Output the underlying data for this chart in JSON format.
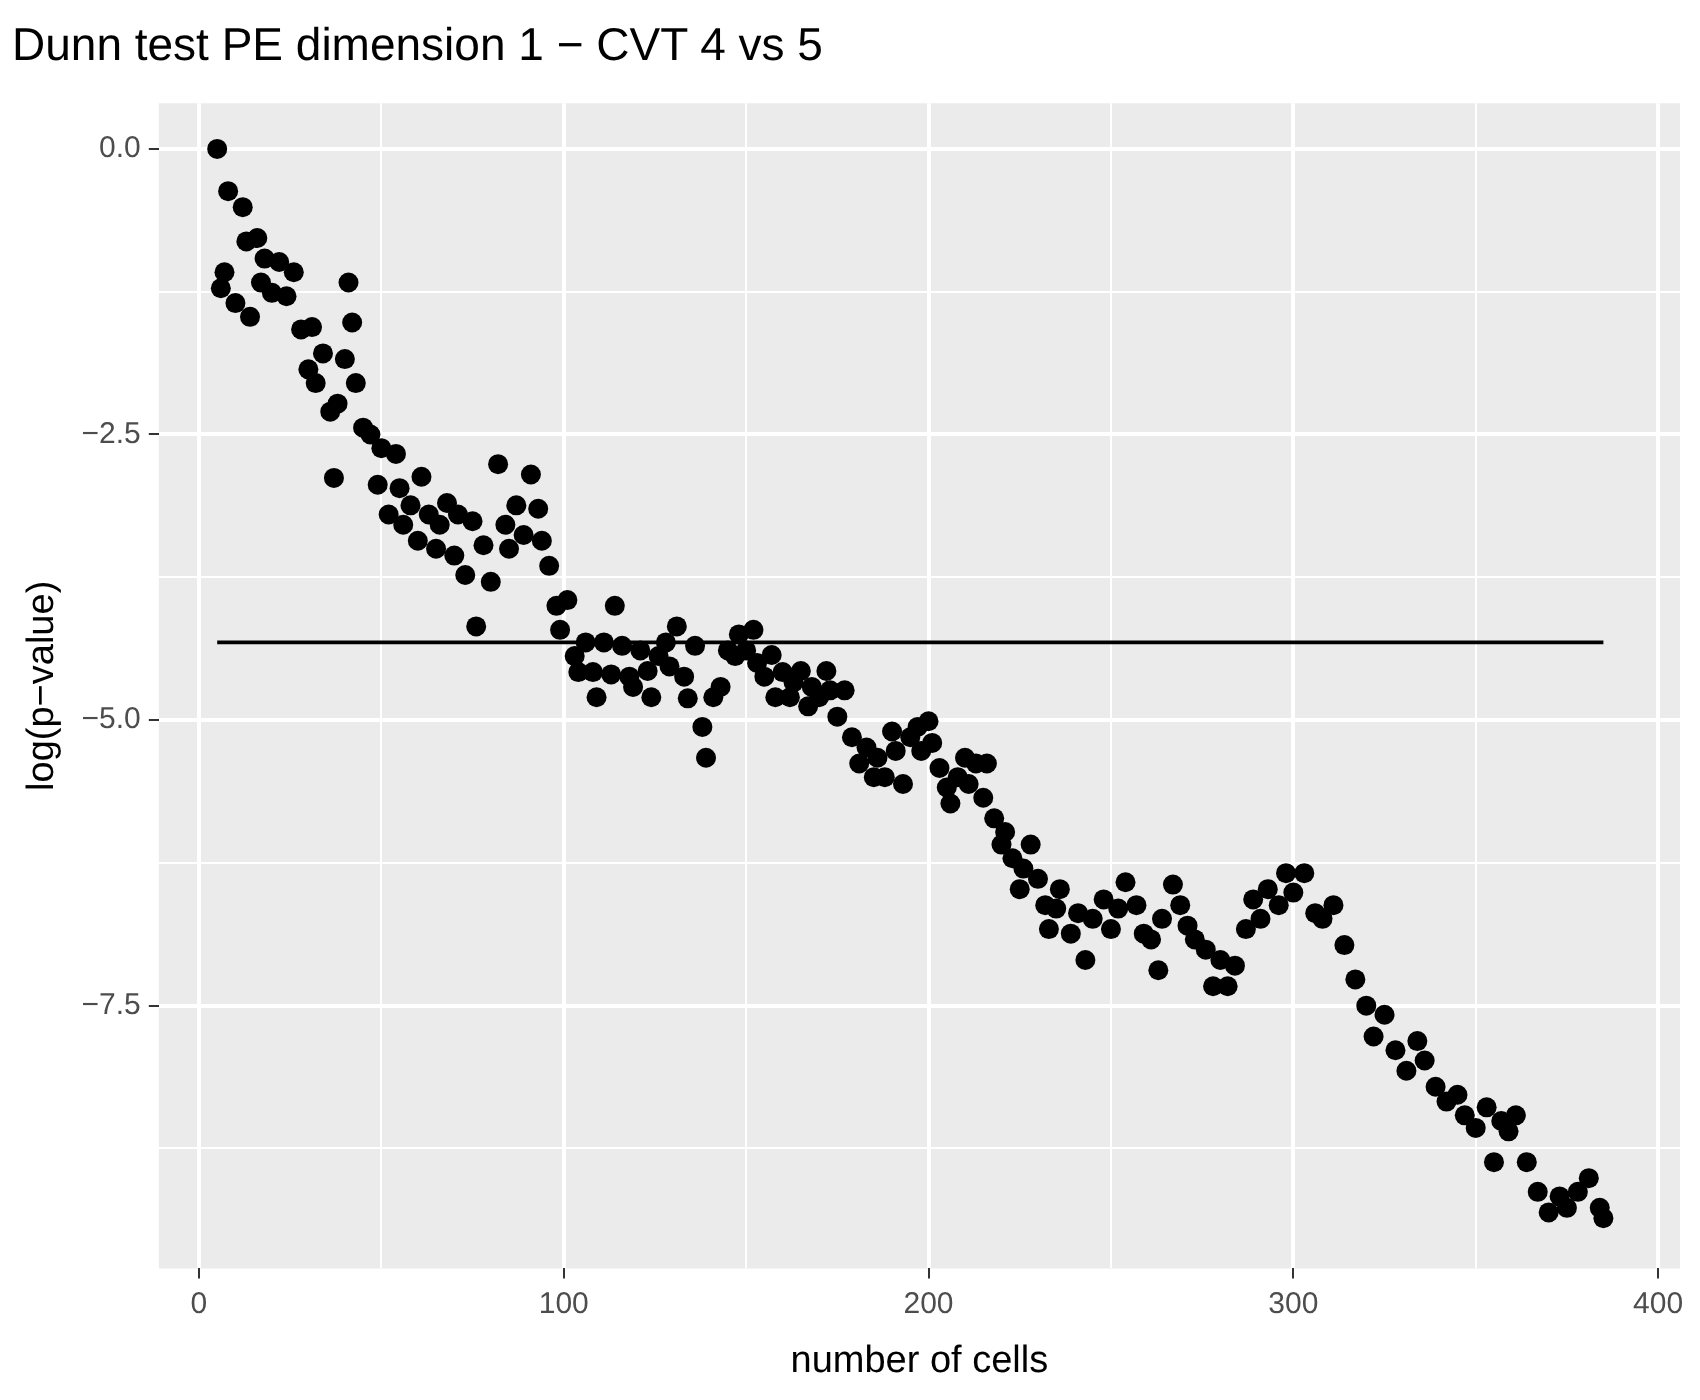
{
  "chart_data": {
    "type": "scatter",
    "title": "Dunn test PE dimension 1 − CVT 4 vs 5",
    "xlabel": "number of cells",
    "ylabel": "log(p−value)",
    "xlim": [
      -11,
      406
    ],
    "ylim": [
      -9.8,
      0.4
    ],
    "xticks": [
      0,
      {
        "value": 50,
        "label": null
      },
      100,
      {
        "value": 150,
        "label": null
      },
      200,
      {
        "value": 250,
        "label": null
      },
      300,
      {
        "value": 350,
        "label": null
      },
      400
    ],
    "yticks": [
      {
        "value": 0,
        "label": "0.0"
      },
      {
        "value": -1.25,
        "label": null
      },
      {
        "value": -2.5,
        "label": "−2.5"
      },
      {
        "value": -3.75,
        "label": null
      },
      {
        "value": -5,
        "label": "−5.0"
      },
      {
        "value": -6.25,
        "label": null
      },
      {
        "value": -7.5,
        "label": "−7.5"
      },
      {
        "value": -8.75,
        "label": null
      }
    ],
    "grid": true,
    "legend": false,
    "marker": "circle",
    "series": [
      {
        "type": "scatter",
        "color": "#000000",
        "x": [
          5,
          6,
          7,
          8,
          10,
          12,
          13,
          14,
          16,
          17,
          18,
          20,
          22,
          24,
          26,
          28,
          30,
          31,
          32,
          34,
          36,
          37,
          38,
          40,
          41,
          42,
          43,
          45,
          47,
          49,
          50,
          52,
          54,
          55,
          56,
          58,
          60,
          61,
          63,
          65,
          66,
          68,
          70,
          71,
          73,
          75,
          76,
          78,
          80,
          82,
          84,
          85,
          87,
          89,
          91,
          93,
          94,
          96,
          98,
          99,
          101,
          103,
          104,
          106,
          108,
          109,
          111,
          113,
          114,
          116,
          118,
          119,
          121,
          123,
          124,
          126,
          128,
          129,
          131,
          133,
          134,
          136,
          138,
          139,
          141,
          143,
          145,
          147,
          148,
          150,
          152,
          153,
          155,
          157,
          158,
          160,
          162,
          163,
          165,
          167,
          168,
          170,
          172,
          173,
          175,
          177,
          179,
          181,
          183,
          185,
          186,
          188,
          190,
          191,
          193,
          195,
          197,
          198,
          200,
          201,
          203,
          205,
          206,
          208,
          210,
          211,
          213,
          215,
          216,
          218,
          220,
          221,
          223,
          225,
          226,
          228,
          230,
          232,
          233,
          235,
          236,
          239,
          241,
          243,
          245,
          248,
          250,
          252,
          254,
          257,
          259,
          261,
          263,
          264,
          267,
          269,
          271,
          273,
          276,
          278,
          280,
          282,
          284,
          287,
          289,
          291,
          293,
          296,
          298,
          300,
          303,
          306,
          308,
          311,
          314,
          317,
          320,
          322,
          325,
          328,
          331,
          334,
          336,
          339,
          342,
          345,
          347,
          350,
          353,
          355,
          357,
          359,
          361,
          364,
          367,
          370,
          373,
          375,
          378,
          381,
          384,
          385
        ],
        "values": [
          0,
          -1.22,
          -1.08,
          -0.37,
          -1.35,
          -0.51,
          -0.81,
          -1.47,
          -0.78,
          -1.17,
          -0.96,
          -1.26,
          -0.99,
          -1.29,
          -1.08,
          -1.58,
          -1.93,
          -1.56,
          -2.05,
          -1.79,
          -2.3,
          -2.88,
          -2.23,
          -1.84,
          -1.17,
          -1.52,
          -2.05,
          -2.44,
          -2.5,
          -2.94,
          -2.62,
          -3.2,
          -2.67,
          -2.97,
          -3.29,
          -3.12,
          -3.43,
          -2.87,
          -3.2,
          -3.5,
          -3.29,
          -3.1,
          -3.56,
          -3.2,
          -3.73,
          -3.26,
          -4.18,
          -3.47,
          -3.79,
          -2.76,
          -3.29,
          -3.5,
          -3.12,
          -3.38,
          -2.85,
          -3.15,
          -3.43,
          -3.65,
          -4,
          -4.21,
          -3.95,
          -4.44,
          -4.58,
          -4.32,
          -4.58,
          -4.8,
          -4.32,
          -4.6,
          -4,
          -4.35,
          -4.62,
          -4.71,
          -4.39,
          -4.57,
          -4.8,
          -4.44,
          -4.32,
          -4.53,
          -4.18,
          -4.62,
          -4.81,
          -4.35,
          -5.06,
          -5.33,
          -4.8,
          -4.71,
          -4.39,
          -4.44,
          -4.25,
          -4.39,
          -4.21,
          -4.5,
          -4.62,
          -4.43,
          -4.8,
          -4.58,
          -4.8,
          -4.67,
          -4.57,
          -4.88,
          -4.71,
          -4.8,
          -4.57,
          -4.74,
          -4.97,
          -4.74,
          -5.15,
          -5.38,
          -5.24,
          -5.5,
          -5.33,
          -5.5,
          -5.1,
          -5.27,
          -5.56,
          -5.15,
          -5.06,
          -5.27,
          -5.01,
          -5.2,
          -5.42,
          -5.59,
          -5.73,
          -5.5,
          -5.33,
          -5.56,
          -5.38,
          -5.68,
          -5.38,
          -5.86,
          -6.09,
          -5.98,
          -6.21,
          -6.48,
          -6.3,
          -6.09,
          -6.39,
          -6.62,
          -6.83,
          -6.65,
          -6.48,
          -6.87,
          -6.69,
          -7.1,
          -6.74,
          -6.57,
          -6.83,
          -6.65,
          -6.42,
          -6.62,
          -6.87,
          -6.92,
          -7.19,
          -6.74,
          -6.44,
          -6.62,
          -6.8,
          -6.92,
          -7.01,
          -7.33,
          -7.1,
          -7.33,
          -7.15,
          -6.83,
          -6.57,
          -6.74,
          -6.48,
          -6.62,
          -6.34,
          -6.51,
          -6.34,
          -6.69,
          -6.74,
          -6.62,
          -6.97,
          -7.27,
          -7.5,
          -7.77,
          -7.58,
          -7.89,
          -8.07,
          -7.81,
          -7.98,
          -8.21,
          -8.34,
          -8.28,
          -8.46,
          -8.57,
          -8.39,
          -8.87,
          -8.51,
          -8.6,
          -8.46,
          -8.87,
          -9.13,
          -9.31,
          -9.17,
          -9.27,
          -9.13,
          -9.01,
          -9.27,
          -9.36
        ]
      },
      {
        "type": "line",
        "color": "#000000",
        "marker": "none",
        "x": [
          5,
          385
        ],
        "values": [
          -4.32,
          -4.32
        ]
      }
    ]
  }
}
